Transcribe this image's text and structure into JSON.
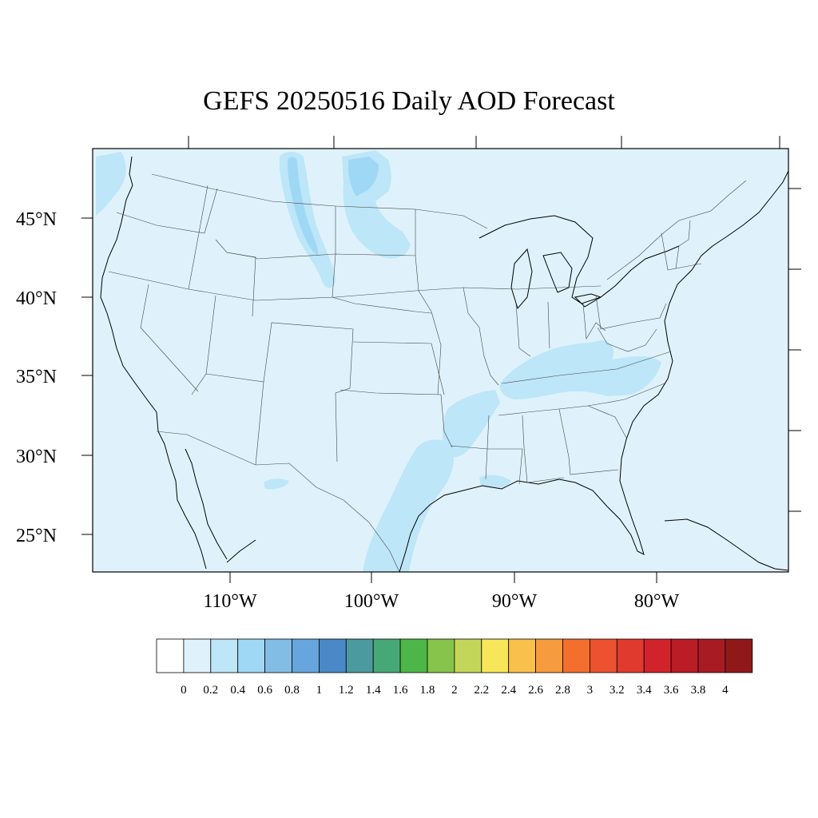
{
  "title": "GEFS 20250516 Daily AOD Forecast",
  "map": {
    "lat_labels": [
      "45°N",
      "40°N",
      "35°N",
      "30°N",
      "25°N"
    ],
    "lon_labels": [
      "110°W",
      "100°W",
      "90°W",
      "80°W"
    ],
    "region": "Continental United States"
  },
  "colorbar": {
    "levels": [
      "0",
      "0.2",
      "0.4",
      "0.6",
      "0.8",
      "1",
      "1.2",
      "1.4",
      "1.6",
      "1.8",
      "2",
      "2.2",
      "2.4",
      "2.6",
      "2.8",
      "3",
      "3.2",
      "3.4",
      "3.6",
      "3.8",
      "4"
    ],
    "colors": [
      "#ffffff",
      "#dff2fb",
      "#bde6f8",
      "#9fd8f5",
      "#82bde6",
      "#66a6dc",
      "#4a88c8",
      "#4b9aa0",
      "#47a877",
      "#4cb748",
      "#86c44b",
      "#c4d65a",
      "#f7e659",
      "#f9c04b",
      "#f79b3f",
      "#f46f2e",
      "#ec5230",
      "#e03a2e",
      "#d2232c",
      "#bb1c26",
      "#a91b22",
      "#911819"
    ]
  }
}
